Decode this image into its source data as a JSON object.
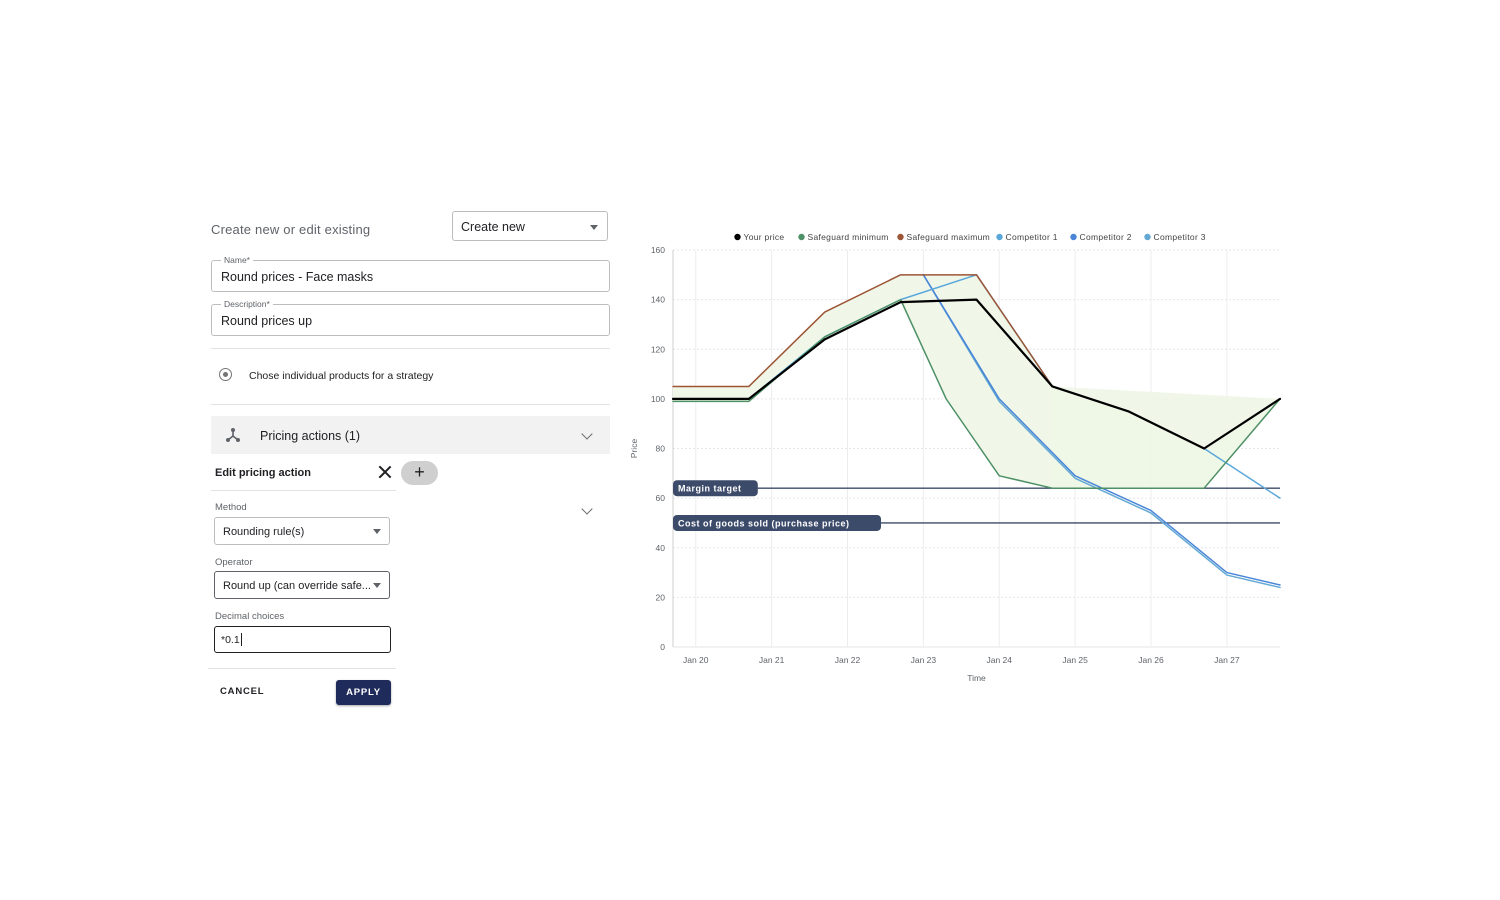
{
  "form": {
    "caption": "Create new or edit existing",
    "mode_select": {
      "value": "Create new"
    },
    "name_field": {
      "label": "Name*",
      "value": "Round prices - Face masks"
    },
    "description_field": {
      "label": "Description*",
      "value": "Round prices up"
    },
    "radio_label": "Chose individual products for a strategy",
    "accordion": {
      "label": "Pricing actions (1)"
    },
    "edit_panel": {
      "title": "Edit pricing action",
      "add_label": "+",
      "method": {
        "label": "Method",
        "value": "Rounding rule(s)"
      },
      "operator": {
        "label": "Operator",
        "value": "Round up (can override safe..."
      },
      "decimal": {
        "label": "Decimal choices",
        "value": "*0.1"
      },
      "cancel_label": "CANCEL",
      "apply_label": "APPLY"
    }
  },
  "colors": {
    "apply_button": "#1f2b5b",
    "your_price": "#000000",
    "safeguard_min": "#4e9166",
    "safeguard_max": "#9c5535",
    "competitor_1": "#5aa7dc",
    "competitor_2": "#4a86d8",
    "competitor_3": "#63a9d4",
    "band_fill": "#eef6e6",
    "reference_line": "#3d4b6b"
  },
  "chart_data": {
    "type": "line",
    "xlabel": "Time",
    "ylabel": "Price",
    "ylim": [
      0,
      160
    ],
    "yticks": [
      0,
      20,
      40,
      60,
      80,
      100,
      120,
      140,
      160
    ],
    "xlim": [
      -0.3,
      7.7
    ],
    "x_ticks": [
      {
        "x": 0,
        "label": "Jan 20"
      },
      {
        "x": 1,
        "label": "Jan 21"
      },
      {
        "x": 2,
        "label": "Jan 22"
      },
      {
        "x": 3,
        "label": "Jan 23"
      },
      {
        "x": 4,
        "label": "Jan 24"
      },
      {
        "x": 5,
        "label": "Jan 25"
      },
      {
        "x": 6,
        "label": "Jan 26"
      },
      {
        "x": 7,
        "label": "Jan 27"
      }
    ],
    "grid": true,
    "legend_position": "top",
    "series": [
      {
        "name": "Your price",
        "color": "#000000",
        "width": 2.2,
        "points": [
          [
            -0.3,
            100
          ],
          [
            0.7,
            100
          ],
          [
            1.7,
            124
          ],
          [
            2.7,
            139
          ],
          [
            3.7,
            140
          ],
          [
            4.7,
            105
          ],
          [
            5.7,
            95
          ],
          [
            6.7,
            80
          ],
          [
            7.7,
            100
          ]
        ]
      },
      {
        "name": "Safeguard minimum",
        "color": "#4e9166",
        "width": 1.5,
        "points": [
          [
            -0.3,
            99
          ],
          [
            0.7,
            99
          ],
          [
            1.7,
            125
          ],
          [
            2.7,
            140
          ],
          [
            3.3,
            100
          ],
          [
            4.0,
            69
          ],
          [
            4.7,
            64
          ],
          [
            6.7,
            64
          ],
          [
            7.7,
            100
          ]
        ]
      },
      {
        "name": "Safeguard maximum",
        "color": "#9c5535",
        "width": 1.5,
        "points": [
          [
            -0.3,
            105
          ],
          [
            0.7,
            105
          ],
          [
            1.7,
            135
          ],
          [
            2.7,
            150
          ],
          [
            3.7,
            150
          ],
          [
            4.7,
            105
          ]
        ]
      },
      {
        "name": "Competitor 1",
        "color": "#5aa7dc",
        "width": 1.5,
        "points": [
          [
            -0.3,
            100
          ],
          [
            0.7,
            100
          ],
          [
            1.7,
            125
          ],
          [
            2.7,
            140
          ],
          [
            3.7,
            150
          ],
          [
            4.7,
            105
          ],
          [
            5.7,
            95
          ],
          [
            6.7,
            80
          ],
          [
            7.7,
            60
          ]
        ]
      },
      {
        "name": "Competitor 2",
        "color": "#4a86d8",
        "width": 1.5,
        "points": [
          [
            3.0,
            150
          ],
          [
            4.0,
            100
          ],
          [
            5.0,
            69
          ],
          [
            6.0,
            55
          ],
          [
            7.0,
            30
          ],
          [
            7.7,
            25
          ]
        ]
      },
      {
        "name": "Competitor 3",
        "color": "#63a9d4",
        "width": 1.5,
        "points": [
          [
            3.0,
            150
          ],
          [
            4.0,
            99
          ],
          [
            5.0,
            68
          ],
          [
            6.0,
            54
          ],
          [
            7.0,
            29
          ],
          [
            7.7,
            24
          ]
        ]
      }
    ],
    "reference_lines": [
      {
        "label": "Margin target",
        "y": 64
      },
      {
        "label": "Cost of goods sold (purchase price)",
        "y": 50
      }
    ]
  }
}
